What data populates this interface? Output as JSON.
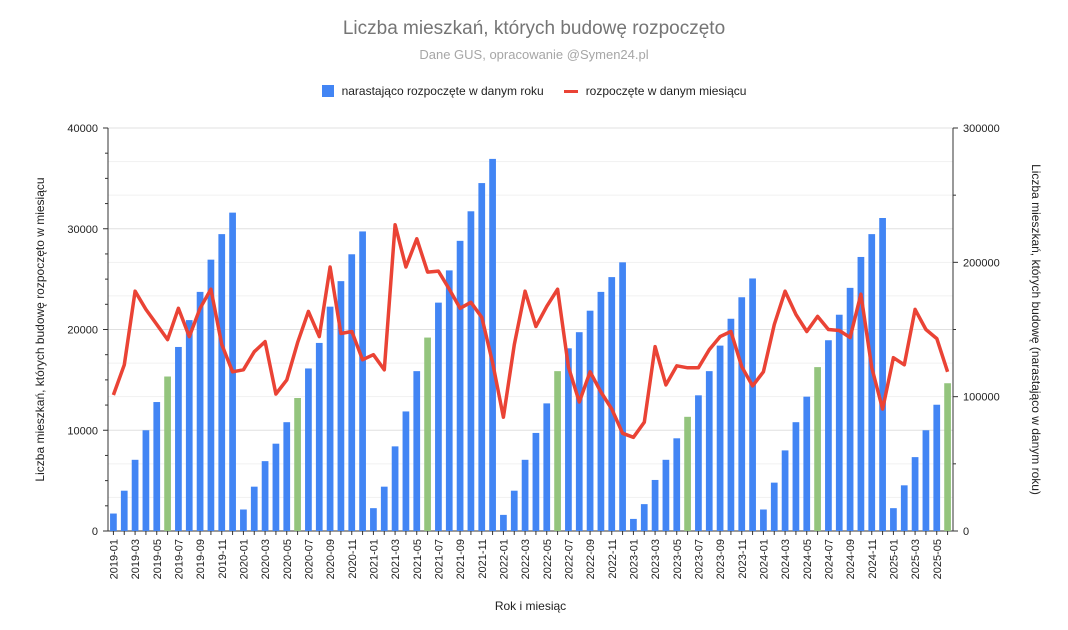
{
  "chart_data": {
    "type": "bar",
    "title": "Liczba mieszkań, których budowę rozpoczęto",
    "subtitle": "Dane GUS, opracowanie @Symen24.pl",
    "xlabel": "Rok i miesiąc",
    "ylabel_left": "Liczba mieszkań, których budowę rozpoczęto w miesiącu",
    "ylabel_right": "Liczba mieszkań, których budowę (narastająco w danym roku)",
    "y_left_lim": [
      0,
      40000
    ],
    "y_right_lim": [
      0,
      300000
    ],
    "y_left_ticks": [
      "0",
      "10000",
      "20000",
      "30000",
      "40000"
    ],
    "y_right_ticks": [
      "0",
      "100000",
      "200000",
      "300000"
    ],
    "legend_position": "top",
    "grid": true,
    "colors": {
      "bar": "#4285f4",
      "bar_highlight": "#93c47d",
      "line": "#ea4335"
    },
    "x": [
      "2019-01",
      "2019-02",
      "2019-03",
      "2019-04",
      "2019-05",
      "2019-06",
      "2019-07",
      "2019-08",
      "2019-09",
      "2019-10",
      "2019-11",
      "2019-12",
      "2020-01",
      "2020-02",
      "2020-03",
      "2020-04",
      "2020-05",
      "2020-06",
      "2020-07",
      "2020-08",
      "2020-09",
      "2020-10",
      "2020-11",
      "2020-12",
      "2021-01",
      "2021-02",
      "2021-03",
      "2021-04",
      "2021-05",
      "2021-06",
      "2021-07",
      "2021-08",
      "2021-09",
      "2021-10",
      "2021-11",
      "2021-12",
      "2022-01",
      "2022-02",
      "2022-03",
      "2022-04",
      "2022-05",
      "2022-06",
      "2022-07",
      "2022-08",
      "2022-09",
      "2022-10",
      "2022-11",
      "2022-12",
      "2023-01",
      "2023-02",
      "2023-03",
      "2023-04",
      "2023-05",
      "2023-06",
      "2023-07",
      "2023-08",
      "2023-09",
      "2023-10",
      "2023-11",
      "2023-12",
      "2024-01",
      "2024-02",
      "2024-03",
      "2024-04",
      "2024-05",
      "2024-06",
      "2024-07",
      "2024-08",
      "2024-09",
      "2024-10",
      "2024-11",
      "2024-12",
      "2025-01",
      "2025-02",
      "2025-03",
      "2025-04",
      "2025-05",
      "2025-06"
    ],
    "series": [
      {
        "name": "narastająco rozpoczęte w danym roku",
        "axis": "right",
        "values": [
          13000,
          30000,
          53000,
          75000,
          96000,
          115000,
          137000,
          157000,
          178000,
          202000,
          221000,
          237000,
          16000,
          33000,
          52000,
          65000,
          81000,
          99000,
          121000,
          140000,
          167000,
          186000,
          206000,
          223000,
          17000,
          33000,
          63000,
          89000,
          119000,
          144000,
          170000,
          194000,
          216000,
          238000,
          259000,
          277000,
          12000,
          30000,
          53000,
          73000,
          95000,
          119000,
          136000,
          148000,
          164000,
          178000,
          189000,
          200000,
          9000,
          20000,
          38000,
          53000,
          69000,
          85000,
          101000,
          119000,
          138000,
          158000,
          174000,
          188000,
          16000,
          36000,
          60000,
          81000,
          100000,
          122000,
          142000,
          161000,
          181000,
          204000,
          221000,
          233000,
          17000,
          34000,
          55000,
          75000,
          94000,
          110000
        ],
        "highlighted_months": [
          "2019-06",
          "2020-06",
          "2021-06",
          "2022-06",
          "2023-06",
          "2024-06",
          "2025-06"
        ]
      },
      {
        "name": "rozpoczęte w danym miesiącu",
        "axis": "left",
        "values": [
          13500,
          16500,
          23800,
          22000,
          20500,
          19000,
          22100,
          19300,
          22100,
          24000,
          18500,
          15800,
          16000,
          17800,
          18800,
          13600,
          15000,
          18700,
          21800,
          19300,
          26200,
          19600,
          19800,
          17000,
          17500,
          16000,
          30400,
          26200,
          29000,
          25700,
          25800,
          24000,
          22100,
          22700,
          21200,
          16700,
          11300,
          18500,
          23800,
          20300,
          22300,
          24000,
          16300,
          12800,
          15800,
          13800,
          12100,
          9700,
          9300,
          10800,
          18300,
          14500,
          16400,
          16200,
          16200,
          18000,
          19300,
          19800,
          16300,
          14400,
          15800,
          20500,
          23800,
          21500,
          19800,
          21300,
          20000,
          19900,
          19200,
          23500,
          16200,
          12100,
          17200,
          16500,
          22000,
          20000,
          19100,
          15800
        ]
      }
    ]
  }
}
